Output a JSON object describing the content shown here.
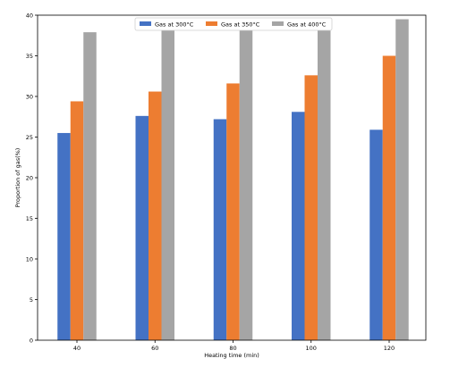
{
  "chart_data": {
    "type": "bar",
    "categories": [
      "40",
      "60",
      "80",
      "100",
      "120"
    ],
    "series": [
      {
        "name": "Gas at 300°C",
        "color": "#4472C4",
        "values": [
          25.5,
          27.6,
          27.2,
          28.1,
          25.9
        ]
      },
      {
        "name": "Gas at 350°C",
        "color": "#ED7D31",
        "values": [
          29.4,
          30.6,
          31.6,
          32.6,
          35.0
        ]
      },
      {
        "name": "Gas at 400°C",
        "color": "#A5A5A5",
        "values": [
          37.9,
          39.0,
          38.7,
          39.2,
          39.5
        ]
      }
    ],
    "xlabel": "Heating time (min)",
    "ylabel": "Proportion of gas(%)",
    "ylim": [
      0,
      40
    ],
    "yticks": [
      "0",
      "5",
      "10",
      "15",
      "20",
      "25",
      "30",
      "35",
      "40"
    ],
    "legend_position": "top-center",
    "grid": false
  }
}
